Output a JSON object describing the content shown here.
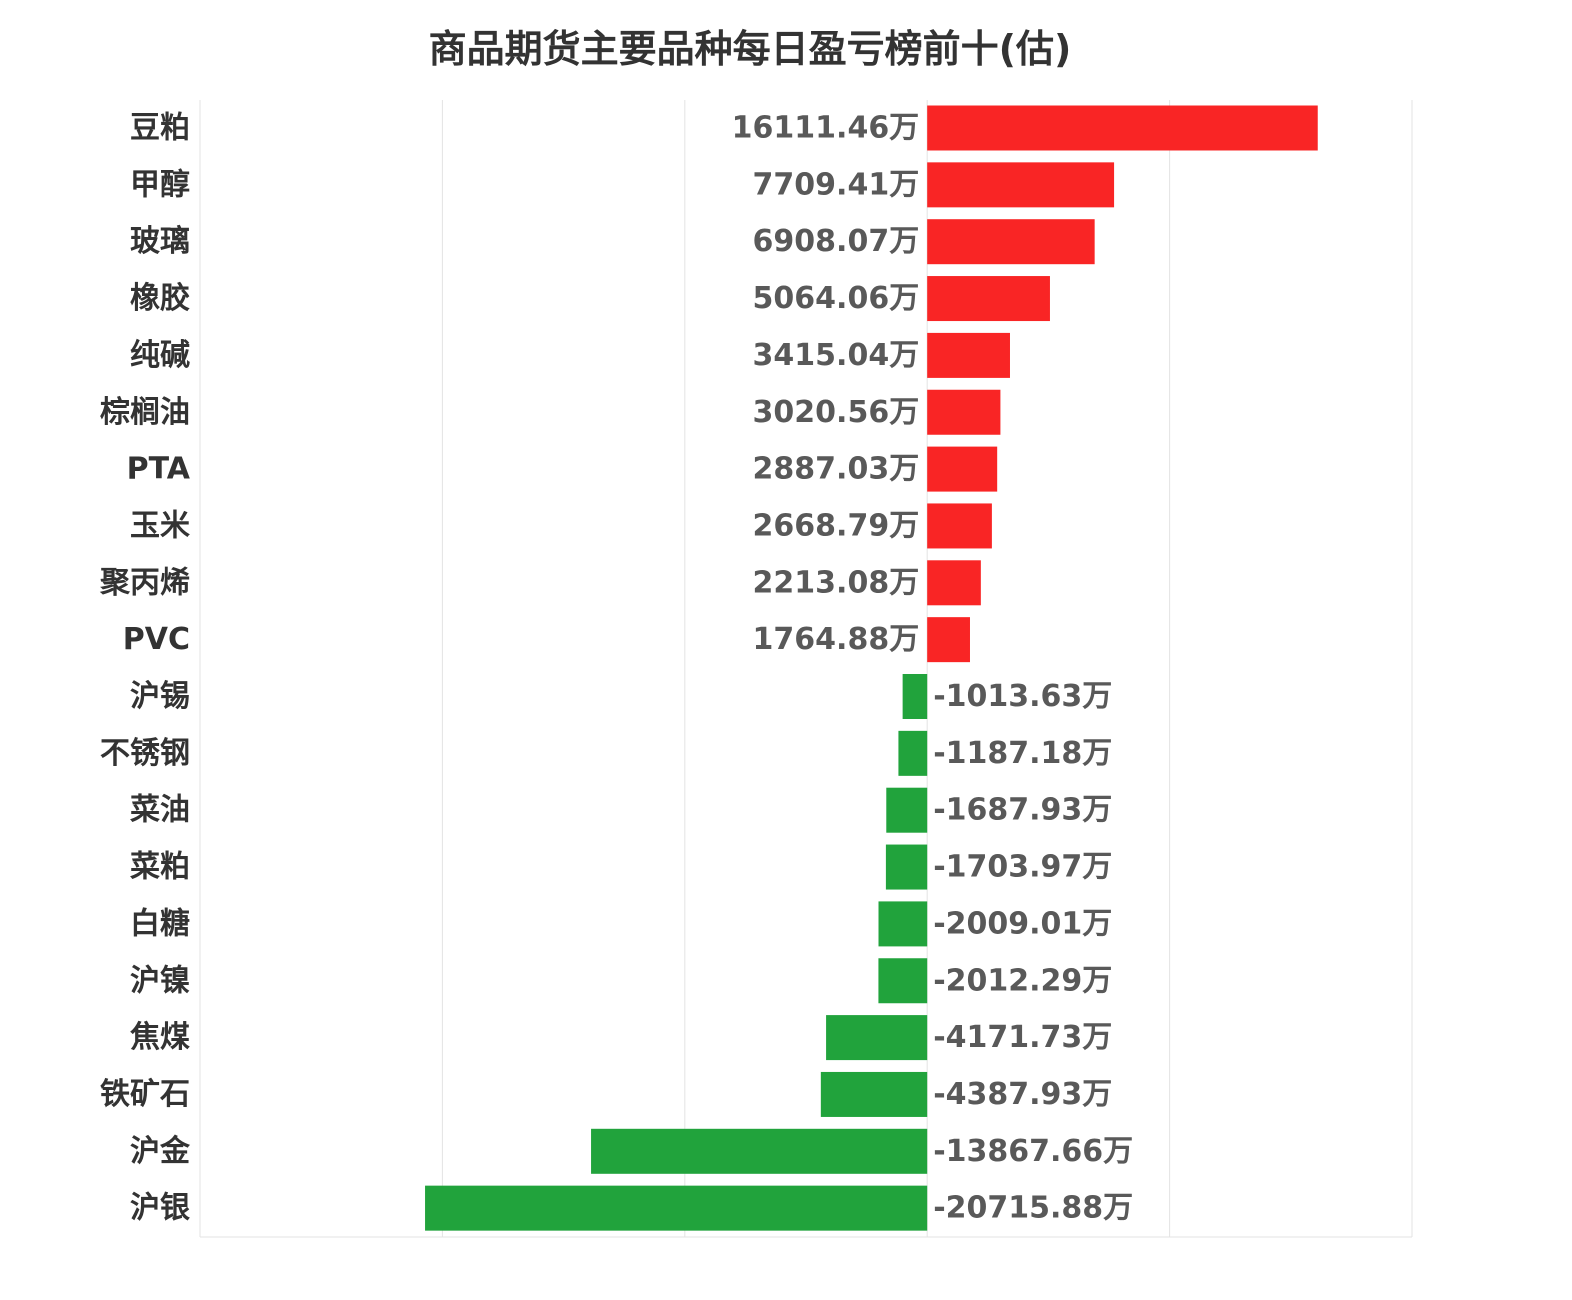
{
  "chart_data": {
    "type": "bar",
    "orientation": "horizontal",
    "title": "商品期货主要品种每日盈亏榜前十(估)",
    "xlabel": "",
    "ylabel": "",
    "xlim": [
      -30000,
      20000
    ],
    "grid": true,
    "value_suffix": "万",
    "categories": [
      "豆粕",
      "甲醇",
      "玻璃",
      "橡胶",
      "纯碱",
      "棕榈油",
      "PTA",
      "玉米",
      "聚丙烯",
      "PVC",
      "沪锡",
      "不锈钢",
      "菜油",
      "菜粕",
      "白糖",
      "沪镍",
      "焦煤",
      "铁矿石",
      "沪金",
      "沪银"
    ],
    "values": [
      16111.46,
      7709.41,
      6908.07,
      5064.06,
      3415.04,
      3020.56,
      2887.03,
      2668.79,
      2213.08,
      1764.88,
      -1013.63,
      -1187.18,
      -1687.93,
      -1703.97,
      -2009.01,
      -2012.29,
      -4171.73,
      -4387.93,
      -13867.66,
      -20715.88
    ],
    "value_labels": [
      "16111.46万",
      "7709.41万",
      "6908.07万",
      "5064.06万",
      "3415.04万",
      "3020.56万",
      "2887.03万",
      "2668.79万",
      "2213.08万",
      "1764.88万",
      "-1013.63万",
      "-1187.18万",
      "-1687.93万",
      "-1703.97万",
      "-2009.01万",
      "-2012.29万",
      "-4171.73万",
      "-4387.93万",
      "-13867.66万",
      "-20715.88万"
    ],
    "positive_color": "#f92525",
    "negative_color": "#21a33c"
  }
}
